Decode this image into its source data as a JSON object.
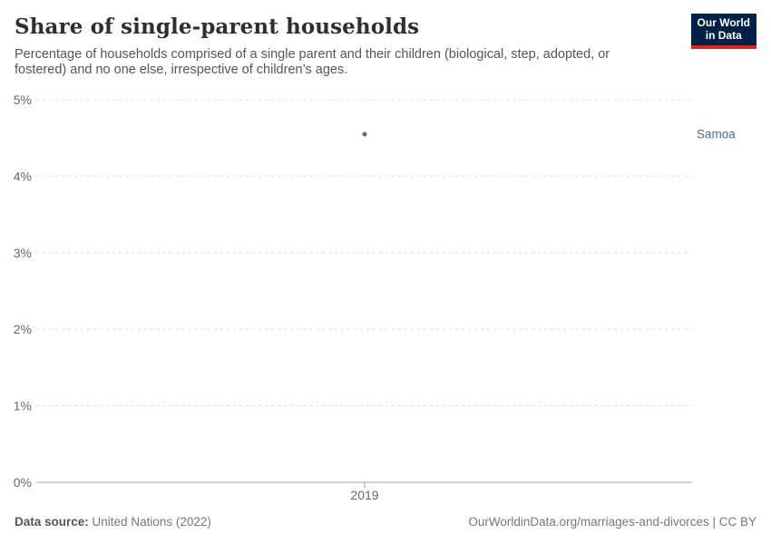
{
  "header": {
    "title": "Share of single-parent households",
    "subtitle": "Percentage of households comprised of a single parent and their children (biological, step, adopted, or fostered) and no one else, irrespective of children’s ages."
  },
  "logo": {
    "line1": "Our World",
    "line2": "in Data",
    "bg_color": "#002147",
    "accent_color": "#dc2323"
  },
  "chart_data": {
    "type": "scatter",
    "title": "Share of single-parent households",
    "x": [
      2019
    ],
    "series": [
      {
        "name": "Samoa",
        "values": [
          4.55
        ],
        "color": "#4c6a9c"
      }
    ],
    "xlabel": "",
    "ylabel": "",
    "ylim": [
      0,
      5
    ],
    "yticks": [
      0,
      1,
      2,
      3,
      4,
      5
    ],
    "ytick_suffix": "%",
    "xticks": [
      2019
    ],
    "grid": "horizontal-dashed",
    "gridline_color": "#dcdcdc",
    "axis_line_color": "#a2a2a2",
    "tick_label_color": "#666666",
    "legend_position": "entity-label-right"
  },
  "footer": {
    "source_label": "Data source:",
    "source_value": "United Nations (2022)",
    "credit": "OurWorldinData.org/marriages-and-divorces | CC BY"
  }
}
